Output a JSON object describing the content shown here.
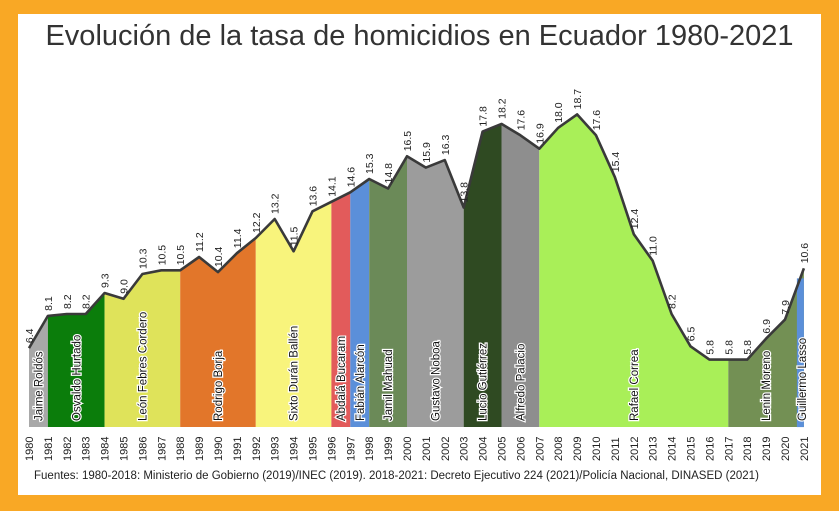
{
  "title": "Evolución de la tasa de homicidios en Ecuador 1980-2021",
  "source": "Fuentes: 1980-2018: Ministerio de Gobierno (2019)/INEC (2019). 2018-2021: Decreto Ejecutivo 224 (2021)/Policía Nacional, DINASED (2021)",
  "colors": {
    "background": "#f9a825",
    "line": "#3a3a3a"
  },
  "chart_data": {
    "type": "area",
    "title": "Evolución de la tasa de homicidios en Ecuador 1980-2021",
    "xlabel": "",
    "ylabel": "",
    "years": [
      1980,
      1981,
      1982,
      1983,
      1984,
      1985,
      1986,
      1987,
      1988,
      1989,
      1990,
      1991,
      1992,
      1993,
      1994,
      1995,
      1996,
      1997,
      1998,
      1999,
      2000,
      2001,
      2002,
      2003,
      2004,
      2005,
      2006,
      2007,
      2008,
      2009,
      2010,
      2011,
      2012,
      2013,
      2014,
      2015,
      2016,
      2017,
      2018,
      2019,
      2020,
      2021
    ],
    "x_tick_labels": [
      "1980",
      "1981",
      "1982",
      "1983",
      "1984",
      "1985",
      "1986",
      "1987",
      "1988",
      "1989",
      "1990",
      "1991",
      "1992",
      "1993",
      "1994",
      "1995",
      "1996",
      "1997",
      "1998",
      "1999",
      "2000",
      "2001",
      "2002",
      "2003",
      "2004",
      "2005",
      "2006",
      "2007",
      "2008",
      "2009",
      "2010",
      "2011",
      "2012",
      "2013",
      "2014",
      "2015",
      "2016",
      "2017",
      "2018",
      "2019",
      "2020",
      "2021"
    ],
    "values": [
      6.4,
      8.1,
      8.2,
      8.2,
      9.3,
      9.0,
      10.3,
      10.5,
      10.5,
      11.2,
      10.4,
      11.4,
      12.2,
      13.2,
      11.5,
      13.6,
      14.1,
      14.6,
      15.3,
      14.8,
      16.5,
      15.9,
      16.3,
      13.8,
      17.8,
      18.2,
      17.6,
      16.9,
      18.0,
      18.7,
      17.6,
      15.4,
      12.4,
      11.0,
      8.2,
      6.5,
      5.8,
      5.8,
      5.8,
      6.9,
      7.9,
      10.6
    ],
    "value_labels": [
      "6.4",
      "8.1",
      "8.2",
      "8.2",
      "9.3",
      "9.0",
      "10.3",
      "10.5",
      "10.5",
      "11.2",
      "10.4",
      "11.4",
      "12.2",
      "13.2",
      "11.5",
      "13.6",
      "14.1",
      "14.6",
      "15.3",
      "14.8",
      "16.5",
      "15.9",
      "16.3",
      "13.8",
      "17.8",
      "18.2",
      "17.6",
      "16.9",
      "18.0",
      "18.7",
      "17.6",
      "15.4",
      "12.4",
      "11.0",
      "8.2",
      "6.5",
      "5.8",
      "5.8",
      "5.8",
      "6.9",
      "7.9",
      "10.6"
    ],
    "grid": false,
    "presidencies": [
      {
        "name": "Jaime Roldós",
        "start": 1980,
        "end": 1981,
        "color": "#a8a8a8"
      },
      {
        "name": "Osvaldo Hurtado",
        "start": 1981,
        "end": 1984,
        "color": "#0b7d0b"
      },
      {
        "name": "León Febres Cordero",
        "start": 1984,
        "end": 1988,
        "color": "#dfe35a"
      },
      {
        "name": "Rodrigo Borja",
        "start": 1988,
        "end": 1992,
        "color": "#e2762a"
      },
      {
        "name": "Sixto Durán Ballén",
        "start": 1992,
        "end": 1996,
        "color": "#f8f47c"
      },
      {
        "name": "Abdalá Bucaram",
        "start": 1996,
        "end": 1997,
        "color": "#e25b5b"
      },
      {
        "name": "Fabián Alarcón",
        "start": 1997,
        "end": 1998,
        "color": "#5b8fd9"
      },
      {
        "name": "Jamil Mahuad",
        "start": 1998,
        "end": 2000,
        "color": "#6b8a58"
      },
      {
        "name": "Gustavo Noboa",
        "start": 2000,
        "end": 2003,
        "color": "#9c9c9c"
      },
      {
        "name": "Lucio Gutiérrez",
        "start": 2003,
        "end": 2005,
        "color": "#2f4a22"
      },
      {
        "name": "Alfredo Palacio",
        "start": 2005,
        "end": 2007,
        "color": "#8e8e8e"
      },
      {
        "name": "Rafael Correa",
        "start": 2007,
        "end": 2017,
        "color": "#a9ef58"
      },
      {
        "name": "Lenin Moreno",
        "start": 2017,
        "end": 2021,
        "color": "#739054"
      },
      {
        "name": "Guillermo Lasso",
        "start": 2021,
        "end": 2021.7,
        "color": "#5b8fd9"
      }
    ]
  }
}
